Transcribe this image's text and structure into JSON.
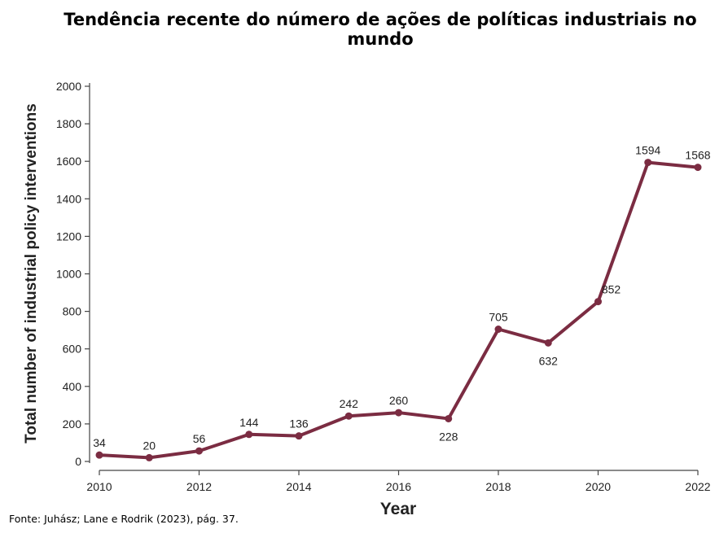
{
  "page": {
    "title": "Tendência recente do número de ações de políticas industriais no mundo",
    "source": "Fonte: Juhász; Lane e Rodrik (2023), pág. 37."
  },
  "colors": {
    "line": "#7b2c42",
    "axis": "#444444",
    "text": "#222222"
  },
  "chart_data": {
    "type": "line",
    "title": "",
    "xlabel": "Year",
    "ylabel": "Total number of industrial policy interventions",
    "x": [
      2010,
      2011,
      2012,
      2013,
      2014,
      2015,
      2016,
      2017,
      2018,
      2019,
      2020,
      2021,
      2022
    ],
    "series": [
      {
        "values": [
          34,
          20,
          56,
          144,
          136,
          242,
          260,
          228,
          705,
          632,
          852,
          1594,
          1568
        ]
      }
    ],
    "data_labels": [
      "34",
      "20",
      "56",
      "144",
      "136",
      "242",
      "260",
      "228",
      "705",
      "632",
      "852",
      "1594",
      "1568"
    ],
    "xticks": [
      2010,
      2012,
      2014,
      2016,
      2018,
      2020,
      2022
    ],
    "yticks": [
      0,
      200,
      400,
      600,
      800,
      1000,
      1200,
      1400,
      1600,
      1800,
      2000
    ],
    "xlim": [
      2010,
      2022
    ],
    "ylim": [
      0,
      2000
    ],
    "grid": false,
    "legend": "none"
  }
}
